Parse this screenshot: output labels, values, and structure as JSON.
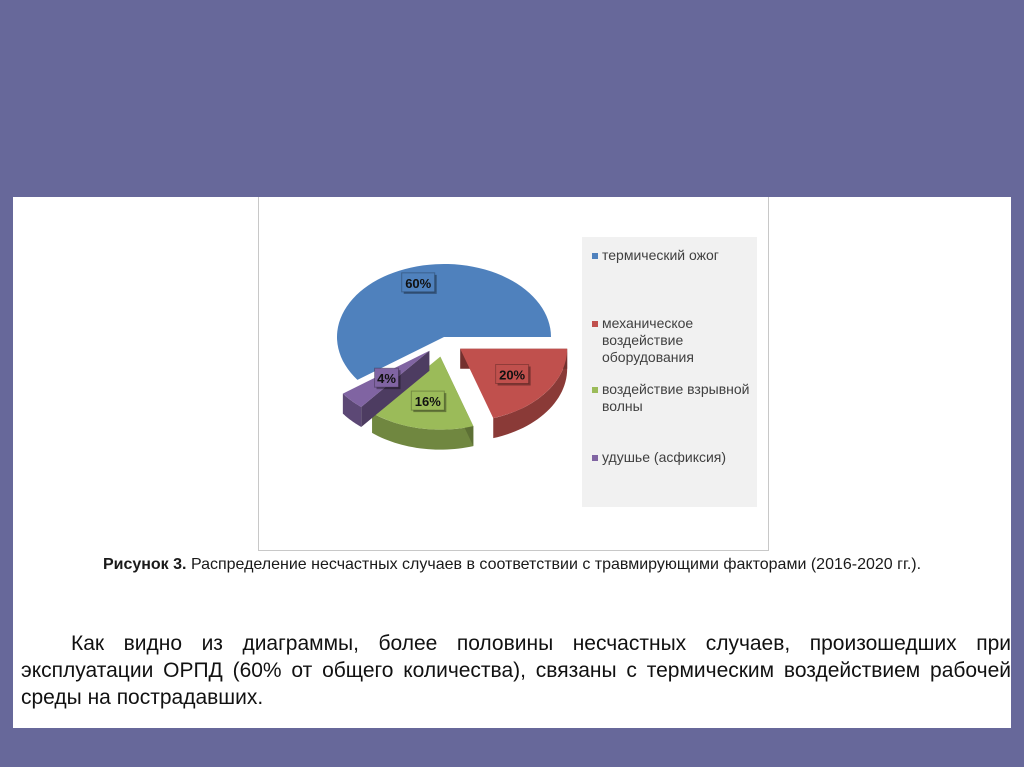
{
  "colors": {
    "page_background": "#67689a",
    "slide_background": "#ffffff",
    "legend_background": "#f1f1f1"
  },
  "chart_data": {
    "type": "pie",
    "style": "3d-exploded",
    "legend_placement": "right",
    "categories": [
      "термический ожог",
      "механическое воздействие оборудования",
      "воздействие взрывной волны",
      "удушье (асфиксия)"
    ],
    "values": [
      60,
      20,
      16,
      4
    ],
    "data_labels": [
      "60%",
      "20%",
      "16%",
      "4%"
    ],
    "colors": [
      "#4f81bd",
      "#c0504d",
      "#9bbb59",
      "#8064a2"
    ],
    "exploded": [
      false,
      true,
      true,
      true
    ]
  },
  "caption": {
    "prefix": "Рисунок 3.",
    "text": "Распределение несчастных случаев в соответствии с травмирующими факторами (2016-2020 гг.)."
  },
  "body_text": "Как видно из диаграммы, более половины несчастных случаев, произошедших при эксплуатации ОРПД (60% от общего количества), связаны с термическим воздействием рабочей среды на пострадавших."
}
